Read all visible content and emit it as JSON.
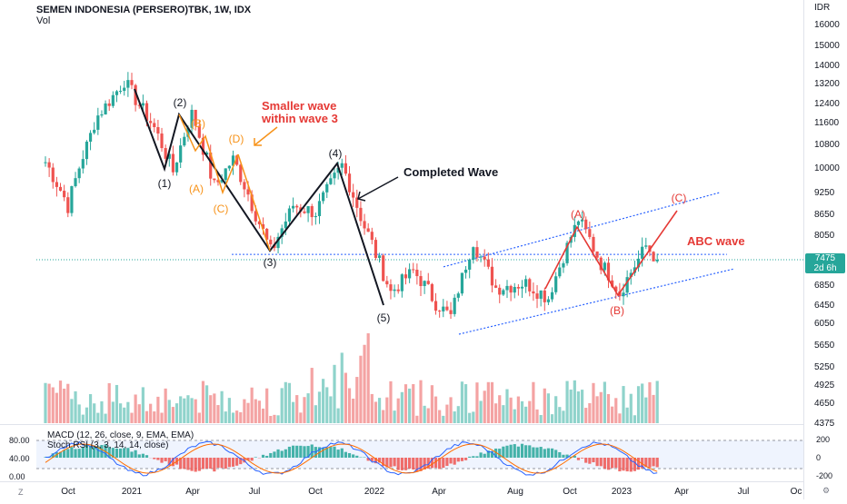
{
  "header": {
    "title": "SEMEN INDONESIA (PERSERO)TBK, 1W, IDX",
    "volume_label": "Vol"
  },
  "indicators": {
    "macd_label": "MACD (12, 26, close, 9, EMA, EMA)",
    "stoch_label": "Stoch RSI (3, 3, 14, 14, close)"
  },
  "price_tag": {
    "price": "7475",
    "countdown": "2d 6h"
  },
  "corner": {
    "left": "Z",
    "right": "⚙"
  },
  "colors": {
    "up": "#26a69a",
    "down": "#ef5350",
    "vol_up": "#8fd3cb",
    "vol_down": "#f4a3a3",
    "wave_black": "#131722",
    "wave_orange": "#f7931a",
    "wave_red": "#e53935",
    "channel": "#2962ff",
    "macd_line": "#2962ff",
    "signal_line": "#ff6d00"
  },
  "chart_data": {
    "type": "candlestick",
    "title": "SEMEN INDONESIA (PERSERO)TBK, 1W, IDX",
    "ylabel": "IDR",
    "y_ticks": [
      4375,
      4650,
      4925,
      5250,
      5650,
      6050,
      6450,
      6850,
      7475,
      8050,
      8650,
      9250,
      10000,
      10800,
      11600,
      12400,
      13200,
      14000,
      15000,
      16000
    ],
    "y_tick_labels": [
      "4375",
      "4650",
      "4925",
      "5250",
      "5650",
      "6050",
      "6450",
      "6850",
      "",
      "8050",
      "8650",
      "9250",
      "10000",
      "10800",
      "11600",
      "12400",
      "13200",
      "14000",
      "15000",
      "16000"
    ],
    "x_ticks": [
      "Oct",
      "2021",
      "Apr",
      "Jul",
      "Oct",
      "2022",
      "Apr",
      "Aug",
      "Oct",
      "2023",
      "Apr",
      "Jul",
      "Oc"
    ],
    "last_price": 7475,
    "support_level": 7600,
    "anchors": [
      {
        "t": 0,
        "p": 10200
      },
      {
        "t": 6,
        "p": 8900
      },
      {
        "t": 14,
        "p": 11900
      },
      {
        "t": 21,
        "p": 13300
      },
      {
        "t": 29,
        "p": 11400
      },
      {
        "t": 34,
        "p": 9900
      },
      {
        "t": 39,
        "p": 12000
      },
      {
        "t": 45,
        "p": 9400
      },
      {
        "t": 50,
        "p": 10300
      },
      {
        "t": 60,
        "p": 7600
      },
      {
        "t": 66,
        "p": 8900
      },
      {
        "t": 72,
        "p": 8700
      },
      {
        "t": 79,
        "p": 10100
      },
      {
        "t": 85,
        "p": 8300
      },
      {
        "t": 92,
        "p": 6700
      },
      {
        "t": 98,
        "p": 7200
      },
      {
        "t": 104,
        "p": 6500
      },
      {
        "t": 108,
        "p": 6200
      },
      {
        "t": 114,
        "p": 7900
      },
      {
        "t": 120,
        "p": 6800
      },
      {
        "t": 128,
        "p": 6900
      },
      {
        "t": 134,
        "p": 6600
      },
      {
        "t": 142,
        "p": 8500
      },
      {
        "t": 148,
        "p": 7400
      },
      {
        "t": 153,
        "p": 6700
      },
      {
        "t": 160,
        "p": 7800
      },
      {
        "t": 163,
        "p": 7475
      }
    ],
    "wave_labels": [
      {
        "text": "(1)",
        "t": 29,
        "p": 9400,
        "color": "black"
      },
      {
        "text": "(2)",
        "t": 34,
        "p": 12650,
        "color": "black"
      },
      {
        "text": "(B)",
        "t": 38,
        "p": 11650,
        "color": "orange"
      },
      {
        "text": "(A)",
        "t": 38,
        "p": 9400,
        "color": "orange"
      },
      {
        "text": "(D)",
        "t": 45,
        "p": 11050,
        "color": "orange"
      },
      {
        "text": "(C)",
        "t": 43,
        "p": 8800,
        "color": "orange"
      },
      {
        "text": "(3)",
        "t": 55,
        "p": 7350,
        "color": "black"
      },
      {
        "text": "(4)",
        "t": 69,
        "p": 10600,
        "color": "black"
      },
      {
        "text": "(5)",
        "t": 79,
        "p": 6250,
        "color": "black"
      },
      {
        "text": "(A)",
        "t": 117,
        "p": 8700,
        "color": "red"
      },
      {
        "text": "(B)",
        "t": 126,
        "p": 6400,
        "color": "red"
      },
      {
        "text": "(C)",
        "t": 138,
        "p": 9150,
        "color": "red"
      }
    ],
    "annotations": [
      {
        "text": "Smaller wave",
        "t": 54,
        "p": 12300,
        "color": "red"
      },
      {
        "text": "within wave 3",
        "t": 54,
        "p": 11700,
        "color": "red"
      },
      {
        "text": "Completed Wave",
        "t": 80,
        "p": 9900,
        "color": "black"
      },
      {
        "text": "ABC wave",
        "t": 139,
        "p": 7800,
        "color": "red"
      }
    ],
    "macd_axis": [
      200,
      0,
      -200
    ],
    "stoch_axis": [
      80,
      40,
      0
    ],
    "stoch_axis_labels": [
      "80.00",
      "40.00",
      "0.00"
    ]
  }
}
